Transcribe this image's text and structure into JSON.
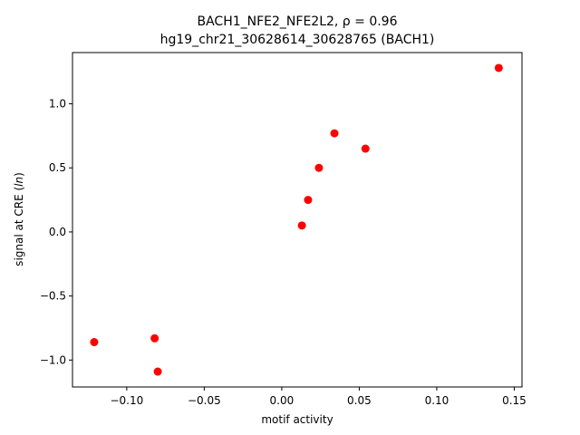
{
  "chart_data": {
    "type": "scatter",
    "title_line1": "BACH1_NFE2_NFE2L2, ρ = 0.96",
    "title_line2": "hg19_chr21_30628614_30628765 (BACH1)",
    "xlabel": "motif activity",
    "ylabel": "signal at CRE (ln)",
    "xlim": [
      -0.135,
      0.155
    ],
    "ylim": [
      -1.21,
      1.4
    ],
    "xticks": [
      -0.1,
      -0.05,
      0.0,
      0.05,
      0.1,
      0.15
    ],
    "xtick_labels": [
      "−0.10",
      "−0.05",
      "0.00",
      "0.05",
      "0.10",
      "0.15"
    ],
    "yticks": [
      -1.0,
      -0.5,
      0.0,
      0.5,
      1.0
    ],
    "ytick_labels": [
      "−1.0",
      "−0.5",
      "0.0",
      "0.5",
      "1.0"
    ],
    "grid": false,
    "marker_color": "#ff0000",
    "points": [
      {
        "x": -0.121,
        "y": -0.86
      },
      {
        "x": -0.082,
        "y": -0.83
      },
      {
        "x": -0.08,
        "y": -1.09
      },
      {
        "x": 0.013,
        "y": 0.05
      },
      {
        "x": 0.017,
        "y": 0.25
      },
      {
        "x": 0.024,
        "y": 0.5
      },
      {
        "x": 0.034,
        "y": 0.77
      },
      {
        "x": 0.054,
        "y": 0.65
      },
      {
        "x": 0.14,
        "y": 1.28
      }
    ]
  }
}
